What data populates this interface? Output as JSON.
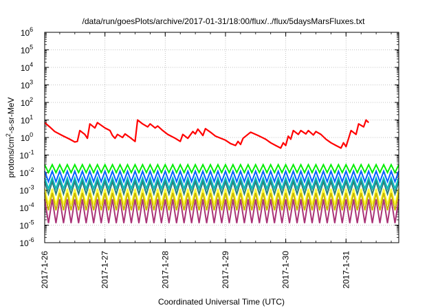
{
  "chart_data": {
    "type": "line",
    "title": "/data/run/goesPlots/archive/2017-01-31/18:00/flux/../flux/5daysMarsFluxes.txt",
    "xlabel": "Coordinated Universal Time (UTC)",
    "ylabel": {
      "base": "protons/cm",
      "sup": "2",
      "rest": "-s-sr-MeV"
    },
    "y_scale": "log",
    "ylim_exp": [
      -6,
      6
    ],
    "y_tick_exponents": [
      -6,
      -5,
      -4,
      -3,
      -2,
      -1,
      0,
      1,
      2,
      3,
      4,
      5,
      6
    ],
    "y_tick_base": "10",
    "xlim": [
      "2017-01-26",
      "2017-01-31 21:00"
    ],
    "x_ticks": [
      "2017-1-26",
      "2017-1-27",
      "2017-1-28",
      "2017-1-29",
      "2017-1-30",
      "2017-1-31"
    ],
    "grid": true,
    "legend": "none",
    "series": [
      {
        "color": "#ff0000",
        "points": [
          [
            "2017-01-26 00:00",
            7
          ],
          [
            "2017-01-26 02:00",
            4
          ],
          [
            "2017-01-26 04:00",
            2.2
          ],
          [
            "2017-01-26 07:00",
            1.3
          ],
          [
            "2017-01-26 10:00",
            0.8
          ],
          [
            "2017-01-26 12:00",
            0.55
          ],
          [
            "2017-01-26 13:00",
            0.6
          ],
          [
            "2017-01-26 14:00",
            2.5
          ],
          [
            "2017-01-26 16:00",
            1.5
          ],
          [
            "2017-01-26 17:00",
            0.9
          ],
          [
            "2017-01-26 18:00",
            6
          ],
          [
            "2017-01-26 20:00",
            3.5
          ],
          [
            "2017-01-26 21:00",
            7
          ],
          [
            "2017-01-27 00:00",
            3.5
          ],
          [
            "2017-01-27 02:00",
            2.5
          ],
          [
            "2017-01-27 03:00",
            1.3
          ],
          [
            "2017-01-27 04:00",
            0.9
          ],
          [
            "2017-01-27 05:00",
            1.5
          ],
          [
            "2017-01-27 07:00",
            1.0
          ],
          [
            "2017-01-27 08:00",
            1.6
          ],
          [
            "2017-01-27 10:00",
            1.0
          ],
          [
            "2017-01-27 12:00",
            0.6
          ],
          [
            "2017-01-27 13:00",
            10
          ],
          [
            "2017-01-27 15:00",
            6
          ],
          [
            "2017-01-27 17:00",
            4
          ],
          [
            "2017-01-27 18:00",
            6
          ],
          [
            "2017-01-27 20:00",
            3.5
          ],
          [
            "2017-01-27 21:00",
            4.5
          ],
          [
            "2017-01-27 23:00",
            2.5
          ],
          [
            "2017-01-28 01:00",
            1.5
          ],
          [
            "2017-01-28 04:00",
            0.9
          ],
          [
            "2017-01-28 06:00",
            0.6
          ],
          [
            "2017-01-28 07:00",
            1.5
          ],
          [
            "2017-01-28 09:00",
            0.9
          ],
          [
            "2017-01-28 11:00",
            2.2
          ],
          [
            "2017-01-28 12:00",
            1.6
          ],
          [
            "2017-01-28 13:00",
            3
          ],
          [
            "2017-01-28 14:00",
            2
          ],
          [
            "2017-01-28 15:00",
            1.3
          ],
          [
            "2017-01-28 16:00",
            3.2
          ],
          [
            "2017-01-28 18:00",
            2
          ],
          [
            "2017-01-28 20:00",
            1.2
          ],
          [
            "2017-01-29 00:00",
            0.7
          ],
          [
            "2017-01-29 02:00",
            0.45
          ],
          [
            "2017-01-29 04:00",
            0.35
          ],
          [
            "2017-01-29 05:00",
            0.6
          ],
          [
            "2017-01-29 06:00",
            0.4
          ],
          [
            "2017-01-29 07:00",
            0.9
          ],
          [
            "2017-01-29 10:00",
            2
          ],
          [
            "2017-01-29 13:00",
            1.3
          ],
          [
            "2017-01-29 16:00",
            0.8
          ],
          [
            "2017-01-29 18:00",
            0.5
          ],
          [
            "2017-01-29 20:00",
            0.35
          ],
          [
            "2017-01-29 22:00",
            0.25
          ],
          [
            "2017-01-29 23:00",
            0.5
          ],
          [
            "2017-01-30 00:00",
            0.35
          ],
          [
            "2017-01-30 01:00",
            1.2
          ],
          [
            "2017-01-30 02:00",
            0.8
          ],
          [
            "2017-01-30 03:00",
            2.5
          ],
          [
            "2017-01-30 05:00",
            1.5
          ],
          [
            "2017-01-30 06:00",
            2.5
          ],
          [
            "2017-01-30 08:00",
            1.6
          ],
          [
            "2017-01-30 09:00",
            2.5
          ],
          [
            "2017-01-30 11:00",
            1.4
          ],
          [
            "2017-01-30 12:00",
            2.2
          ],
          [
            "2017-01-30 14:00",
            1.5
          ],
          [
            "2017-01-30 16:00",
            0.8
          ],
          [
            "2017-01-30 18:00",
            0.5
          ],
          [
            "2017-01-30 20:00",
            0.35
          ],
          [
            "2017-01-30 22:00",
            0.25
          ],
          [
            "2017-01-30 23:00",
            0.5
          ],
          [
            "2017-01-31 00:00",
            0.3
          ],
          [
            "2017-01-31 02:00",
            2.5
          ],
          [
            "2017-01-31 04:00",
            1.5
          ],
          [
            "2017-01-31 05:00",
            6
          ],
          [
            "2017-01-31 07:00",
            4
          ],
          [
            "2017-01-31 08:00",
            10
          ],
          [
            "2017-01-31 09:00",
            7
          ]
        ]
      }
    ],
    "oscillating_bands": [
      {
        "color": "#00ee00",
        "high": 0.028,
        "low": 0.01,
        "period_hours": 3
      },
      {
        "color": "#0060ff",
        "high": 0.012,
        "low": 0.003,
        "period_hours": 3
      },
      {
        "color": "#00bbbb",
        "high": 0.005,
        "low": 0.0012,
        "period_hours": 3
      },
      {
        "color": "#2a7f7f",
        "high": 0.003,
        "low": 0.0006,
        "period_hours": 3
      },
      {
        "color": "#ffff33",
        "high": 0.0012,
        "low": 0.00015,
        "period_hours": 3
      },
      {
        "color": "#c8b400",
        "high": 0.0007,
        "low": 7e-05,
        "period_hours": 3
      },
      {
        "color": "#aa3377",
        "high": 0.0003,
        "low": 1.3e-05,
        "period_hours": 3
      }
    ]
  }
}
